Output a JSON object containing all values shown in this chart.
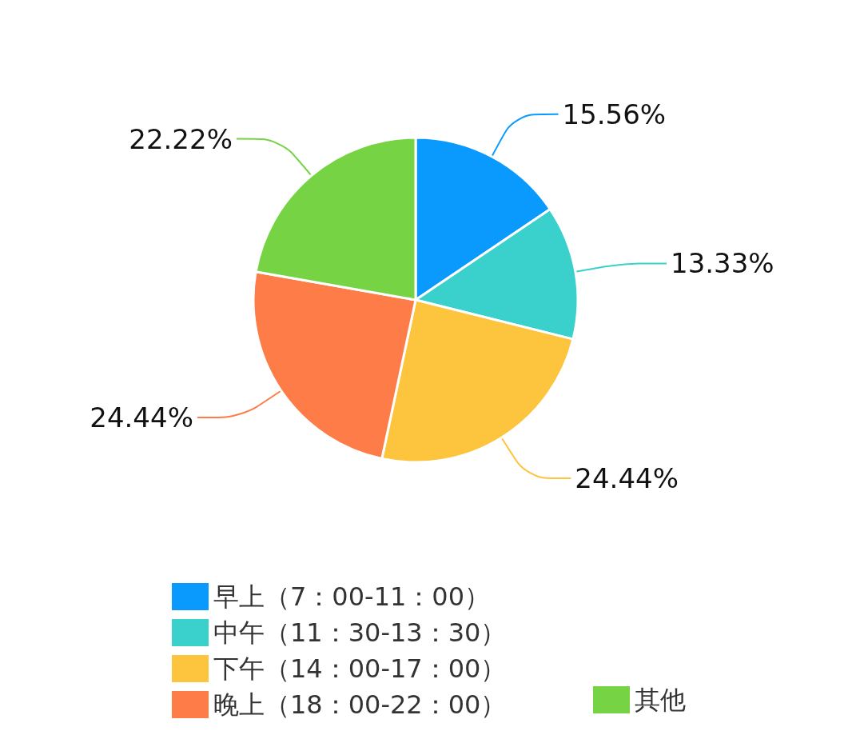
{
  "chart_data": {
    "type": "pie",
    "categories": [
      "早上（7：00-11：00）",
      "中午（11：30-13：30）",
      "下午（14：00-17：00）",
      "晚上（18：00-22：00）",
      "其他"
    ],
    "values": [
      15.56,
      13.33,
      24.44,
      24.44,
      22.22
    ],
    "value_labels": [
      "15.56%",
      "13.33%",
      "24.44%",
      "24.44%",
      "22.22%"
    ],
    "colors": [
      "#0a9afe",
      "#3ad1cc",
      "#fdc43e",
      "#fe7c47",
      "#76d344"
    ],
    "legend": "bottom"
  }
}
